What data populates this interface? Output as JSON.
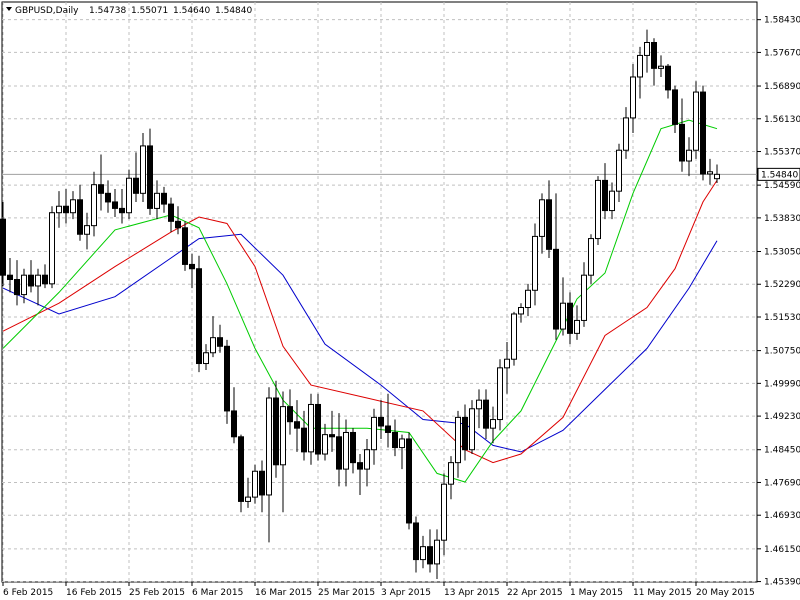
{
  "chart_data": {
    "type": "candlestick",
    "title": {
      "symbol": "GBPUSD,Daily",
      "open": "1.54738",
      "high": "1.55071",
      "low": "1.54640",
      "close": "1.54840"
    },
    "ylim": [
      1.4538,
      1.5884
    ],
    "y_ticks": [
      "1.58430",
      "1.57670",
      "1.56890",
      "1.56130",
      "1.55370",
      "1.54590",
      "1.53830",
      "1.53050",
      "1.52290",
      "1.51530",
      "1.50750",
      "1.49990",
      "1.49230",
      "1.48450",
      "1.47690",
      "1.46930",
      "1.46150",
      "1.45390"
    ],
    "current_price": "1.54840",
    "x_labels": [
      "6 Feb 2015",
      "16 Feb 2015",
      "25 Feb 2015",
      "6 Mar 2015",
      "16 Mar 2015",
      "25 Mar 2015",
      "3 Apr 2015",
      "13 Apr 2015",
      "22 Apr 2015",
      "1 May 2015",
      "11 May 2015",
      "20 May 2015"
    ],
    "grid": true,
    "legend": "none",
    "colors": {
      "bull_body": "#ffffff",
      "bear_body": "#000000",
      "ma_fast": "#00cc00",
      "ma_mid": "#dd0000",
      "ma_slow": "#0000cc",
      "grid": "#c0c0c0"
    },
    "candles": [
      [
        1.538,
        1.542,
        1.5225,
        1.525
      ],
      [
        1.525,
        1.529,
        1.521,
        1.524
      ],
      [
        1.524,
        1.5285,
        1.518,
        1.5205
      ],
      [
        1.5205,
        1.5265,
        1.5185,
        1.525
      ],
      [
        1.525,
        1.5285,
        1.521,
        1.5225
      ],
      [
        1.5225,
        1.5265,
        1.518,
        1.525
      ],
      [
        1.525,
        1.5275,
        1.522,
        1.523
      ],
      [
        1.523,
        1.541,
        1.522,
        1.5395
      ],
      [
        1.5395,
        1.5445,
        1.536,
        1.541
      ],
      [
        1.541,
        1.545,
        1.537,
        1.5395
      ],
      [
        1.5395,
        1.5445,
        1.538,
        1.5425
      ],
      [
        1.5425,
        1.546,
        1.533,
        1.5345
      ],
      [
        1.5345,
        1.5395,
        1.531,
        1.5365
      ],
      [
        1.5365,
        1.549,
        1.534,
        1.546
      ],
      [
        1.546,
        1.553,
        1.54,
        1.544
      ],
      [
        1.544,
        1.547,
        1.5395,
        1.542
      ],
      [
        1.542,
        1.545,
        1.5385,
        1.5405
      ],
      [
        1.5405,
        1.545,
        1.537,
        1.5395
      ],
      [
        1.5395,
        1.5495,
        1.538,
        1.5475
      ],
      [
        1.5475,
        1.5535,
        1.542,
        1.544
      ],
      [
        1.544,
        1.558,
        1.542,
        1.555
      ],
      [
        1.555,
        1.559,
        1.539,
        1.5405
      ],
      [
        1.5405,
        1.547,
        1.538,
        1.544
      ],
      [
        1.544,
        1.5455,
        1.5395,
        1.5415
      ],
      [
        1.5415,
        1.543,
        1.535,
        1.5375
      ],
      [
        1.5375,
        1.541,
        1.5345,
        1.536
      ],
      [
        1.536,
        1.5375,
        1.526,
        1.5275
      ],
      [
        1.5275,
        1.53,
        1.522,
        1.5265
      ],
      [
        1.5265,
        1.5295,
        1.5025,
        1.5045
      ],
      [
        1.5045,
        1.509,
        1.503,
        1.507
      ],
      [
        1.507,
        1.5155,
        1.506,
        1.5105
      ],
      [
        1.5105,
        1.5135,
        1.507,
        1.5085
      ],
      [
        1.5085,
        1.51,
        1.4905,
        1.4935
      ],
      [
        1.4935,
        1.499,
        1.486,
        1.4875
      ],
      [
        1.4875,
        1.488,
        1.47,
        1.4725
      ],
      [
        1.4725,
        1.478,
        1.471,
        1.4735
      ],
      [
        1.4735,
        1.481,
        1.472,
        1.4795
      ],
      [
        1.4795,
        1.482,
        1.47,
        1.474
      ],
      [
        1.474,
        1.499,
        1.463,
        1.4965
      ],
      [
        1.4965,
        1.5005,
        1.478,
        1.481
      ],
      [
        1.481,
        1.498,
        1.47,
        1.4945
      ],
      [
        1.4945,
        1.4985,
        1.488,
        1.491
      ],
      [
        1.491,
        1.496,
        1.484,
        1.4895
      ],
      [
        1.4895,
        1.4935,
        1.482,
        1.484
      ],
      [
        1.484,
        1.4975,
        1.481,
        1.495
      ],
      [
        1.495,
        1.4975,
        1.482,
        1.4835
      ],
      [
        1.4835,
        1.4905,
        1.482,
        1.488
      ],
      [
        1.488,
        1.4935,
        1.484,
        1.4875
      ],
      [
        1.4875,
        1.493,
        1.476,
        1.48
      ],
      [
        1.48,
        1.4915,
        1.476,
        1.4885
      ],
      [
        1.4885,
        1.4895,
        1.479,
        1.4815
      ],
      [
        1.4815,
        1.4835,
        1.474,
        1.48
      ],
      [
        1.48,
        1.487,
        1.476,
        1.4845
      ],
      [
        1.4845,
        1.494,
        1.481,
        1.492
      ],
      [
        1.492,
        1.496,
        1.487,
        1.49
      ],
      [
        1.49,
        1.4975,
        1.485,
        1.4885
      ],
      [
        1.4885,
        1.4915,
        1.483,
        1.485
      ],
      [
        1.485,
        1.488,
        1.48,
        1.487
      ],
      [
        1.487,
        1.4885,
        1.466,
        1.4675
      ],
      [
        1.4675,
        1.469,
        1.456,
        1.459
      ],
      [
        1.459,
        1.4645,
        1.457,
        1.462
      ],
      [
        1.462,
        1.466,
        1.456,
        1.458
      ],
      [
        1.458,
        1.466,
        1.4545,
        1.4635
      ],
      [
        1.4635,
        1.479,
        1.46,
        1.4765
      ],
      [
        1.4765,
        1.483,
        1.473,
        1.4815
      ],
      [
        1.4815,
        1.4935,
        1.478,
        1.492
      ],
      [
        1.492,
        1.495,
        1.482,
        1.4845
      ],
      [
        1.4845,
        1.496,
        1.4835,
        1.494
      ],
      [
        1.494,
        1.4985,
        1.4895,
        1.496
      ],
      [
        1.496,
        1.4985,
        1.487,
        1.4895
      ],
      [
        1.4895,
        1.4945,
        1.486,
        1.4915
      ],
      [
        1.4915,
        1.5055,
        1.489,
        1.5035
      ],
      [
        1.5035,
        1.5095,
        1.4975,
        1.5055
      ],
      [
        1.5055,
        1.5165,
        1.504,
        1.516
      ],
      [
        1.516,
        1.5185,
        1.514,
        1.5175
      ],
      [
        1.5175,
        1.523,
        1.5155,
        1.5215
      ],
      [
        1.5215,
        1.537,
        1.518,
        1.534
      ],
      [
        1.534,
        1.544,
        1.53,
        1.5425
      ],
      [
        1.5425,
        1.547,
        1.529,
        1.531
      ],
      [
        1.531,
        1.544,
        1.51,
        1.5125
      ],
      [
        1.5125,
        1.5245,
        1.511,
        1.5185
      ],
      [
        1.5185,
        1.521,
        1.509,
        1.5115
      ],
      [
        1.5115,
        1.518,
        1.51,
        1.5145
      ],
      [
        1.5145,
        1.528,
        1.513,
        1.525
      ],
      [
        1.525,
        1.5345,
        1.523,
        1.5335
      ],
      [
        1.5335,
        1.548,
        1.532,
        1.547
      ],
      [
        1.547,
        1.551,
        1.538,
        1.54
      ],
      [
        1.54,
        1.5465,
        1.538,
        1.5445
      ],
      [
        1.5445,
        1.5555,
        1.542,
        1.554
      ],
      [
        1.554,
        1.564,
        1.552,
        1.5615
      ],
      [
        1.5615,
        1.574,
        1.558,
        1.571
      ],
      [
        1.571,
        1.578,
        1.566,
        1.576
      ],
      [
        1.576,
        1.582,
        1.572,
        1.579
      ],
      [
        1.579,
        1.58,
        1.569,
        1.573
      ],
      [
        1.573,
        1.576,
        1.571,
        1.5735
      ],
      [
        1.5735,
        1.574,
        1.566,
        1.568
      ],
      [
        1.568,
        1.569,
        1.558,
        1.56
      ],
      [
        1.56,
        1.566,
        1.549,
        1.5515
      ],
      [
        1.5515,
        1.557,
        1.548,
        1.554
      ],
      [
        1.554,
        1.57,
        1.552,
        1.5675
      ],
      [
        1.5675,
        1.569,
        1.547,
        1.5485
      ],
      [
        1.5485,
        1.552,
        1.546,
        1.549
      ],
      [
        1.5474,
        1.5507,
        1.5464,
        1.5484
      ]
    ],
    "ma_fast": [
      [
        0,
        1.508
      ],
      [
        8,
        1.521
      ],
      [
        16,
        1.5355
      ],
      [
        24,
        1.539
      ],
      [
        28,
        1.536
      ],
      [
        32,
        1.523
      ],
      [
        36,
        1.508
      ],
      [
        40,
        1.496
      ],
      [
        44,
        1.4895
      ],
      [
        52,
        1.4895
      ],
      [
        58,
        1.4885
      ],
      [
        62,
        1.479
      ],
      [
        66,
        1.477
      ],
      [
        70,
        1.4865
      ],
      [
        74,
        1.4935
      ],
      [
        78,
        1.5065
      ],
      [
        82,
        1.5195
      ],
      [
        86,
        1.5255
      ],
      [
        90,
        1.544
      ],
      [
        94,
        1.559
      ],
      [
        98,
        1.561
      ],
      [
        102,
        1.559
      ]
    ],
    "ma_mid": [
      [
        0,
        1.512
      ],
      [
        8,
        1.5185
      ],
      [
        16,
        1.527
      ],
      [
        24,
        1.535
      ],
      [
        28,
        1.5385
      ],
      [
        32,
        1.537
      ],
      [
        36,
        1.527
      ],
      [
        40,
        1.5085
      ],
      [
        44,
        1.4995
      ],
      [
        52,
        1.4965
      ],
      [
        60,
        1.4935
      ],
      [
        66,
        1.4845
      ],
      [
        70,
        1.4815
      ],
      [
        74,
        1.4835
      ],
      [
        80,
        1.492
      ],
      [
        86,
        1.511
      ],
      [
        92,
        1.5175
      ],
      [
        96,
        1.5265
      ],
      [
        100,
        1.542
      ],
      [
        102,
        1.547
      ]
    ],
    "ma_slow": [
      [
        0,
        1.522
      ],
      [
        8,
        1.516
      ],
      [
        16,
        1.52
      ],
      [
        24,
        1.529
      ],
      [
        28,
        1.5335
      ],
      [
        34,
        1.5345
      ],
      [
        40,
        1.525
      ],
      [
        46,
        1.509
      ],
      [
        54,
        1.4995
      ],
      [
        60,
        1.4915
      ],
      [
        66,
        1.4905
      ],
      [
        70,
        1.4855
      ],
      [
        74,
        1.484
      ],
      [
        80,
        1.489
      ],
      [
        86,
        1.4985
      ],
      [
        92,
        1.508
      ],
      [
        98,
        1.522
      ],
      [
        102,
        1.533
      ]
    ]
  }
}
